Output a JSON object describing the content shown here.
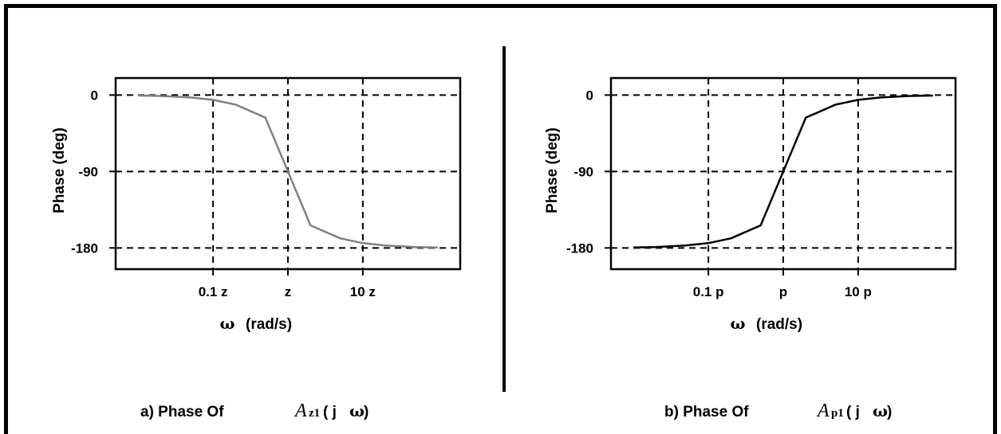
{
  "colors": {
    "frame": "#000000",
    "curve_a": "#808080",
    "curve_b": "#000000",
    "grid": "#000000"
  },
  "chart_data": [
    {
      "type": "line",
      "caption_prefix": "a) Phase  Of",
      "caption_symbol": "A",
      "caption_subscript": "z1",
      "caption_suffix": "( j",
      "caption_omega": "ω",
      "caption_close": ")",
      "xlabel_symbol": "ω",
      "xlabel": "(rad/s)",
      "ylabel": "Phase  (deg)",
      "x_scale": "log",
      "xlim": [
        0.005,
        200
      ],
      "ylim": [
        20,
        -205
      ],
      "x_ticks": [
        0.1,
        1,
        10
      ],
      "x_tick_labels": [
        "0.1 z",
        "z",
        "10 z"
      ],
      "y_ticks": [
        0,
        -90,
        -180
      ],
      "y_tick_labels": [
        "0",
        "-90",
        "-180"
      ],
      "grid": true,
      "series": [
        {
          "x": [
            0.01,
            0.02,
            0.05,
            0.1,
            0.2,
            0.5,
            1,
            2,
            5,
            10,
            20,
            50,
            100
          ],
          "values": [
            -0.6,
            -1.1,
            -2.9,
            -5.7,
            -11.3,
            -26.6,
            -90,
            -153.4,
            -168.7,
            -174.3,
            -177.1,
            -178.9,
            -179.4
          ]
        }
      ]
    },
    {
      "type": "line",
      "caption_prefix": "b) Phase  Of",
      "caption_symbol": "A",
      "caption_subscript": "p1",
      "caption_suffix": "( j",
      "caption_omega": "ω",
      "caption_close": ")",
      "xlabel_symbol": "ω",
      "xlabel": "(rad/s)",
      "ylabel": "Phase  (deg)",
      "x_scale": "log",
      "xlim": [
        0.005,
        200
      ],
      "ylim": [
        20,
        -205
      ],
      "x_ticks": [
        0.1,
        1,
        10
      ],
      "x_tick_labels": [
        "0.1 p",
        "p",
        "10 p"
      ],
      "y_ticks": [
        0,
        -90,
        -180
      ],
      "y_tick_labels": [
        "0",
        "-90",
        "-180"
      ],
      "grid": true,
      "series": [
        {
          "x": [
            0.01,
            0.02,
            0.05,
            0.1,
            0.2,
            0.5,
            1,
            2,
            5,
            10,
            20,
            50,
            100
          ],
          "values": [
            -179.4,
            -178.9,
            -177.1,
            -174.3,
            -168.7,
            -153.4,
            -90,
            -26.6,
            -11.3,
            -5.7,
            -2.9,
            -1.1,
            -0.6
          ]
        }
      ]
    }
  ]
}
